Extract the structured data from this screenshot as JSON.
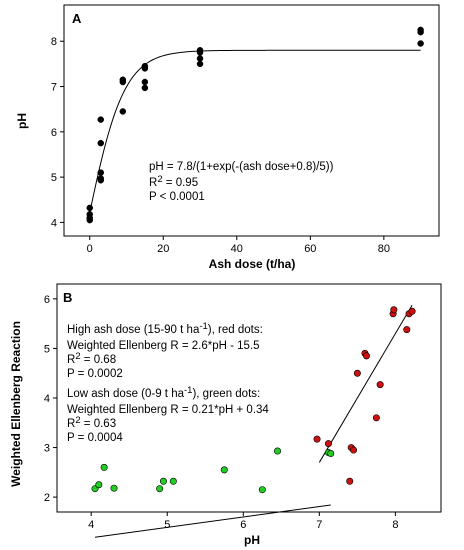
{
  "chart_data": [
    {
      "panel": "A",
      "type": "scatter",
      "xlabel": "Ash dose (t/ha)",
      "ylabel": "pH",
      "xlim": [
        -7,
        95
      ],
      "ylim": [
        3.7,
        8.8
      ],
      "xticks": [
        0,
        20,
        40,
        60,
        80
      ],
      "yticks": [
        4,
        5,
        6,
        7,
        8
      ],
      "series": [
        {
          "color": "#000000",
          "points": [
            [
              0,
              4.05
            ],
            [
              0,
              4.1
            ],
            [
              0,
              4.18
            ],
            [
              0,
              4.32
            ],
            [
              3,
              4.93
            ],
            [
              3,
              4.97
            ],
            [
              3,
              5.1
            ],
            [
              3,
              5.75
            ],
            [
              3,
              6.27
            ],
            [
              9,
              6.45
            ],
            [
              9,
              7.1
            ],
            [
              9,
              7.15
            ],
            [
              15,
              6.97
            ],
            [
              15,
              7.1
            ],
            [
              15,
              7.4
            ],
            [
              15,
              7.45
            ],
            [
              30,
              7.5
            ],
            [
              30,
              7.62
            ],
            [
              30,
              7.75
            ],
            [
              30,
              7.8
            ],
            [
              90,
              7.95
            ],
            [
              90,
              8.2
            ],
            [
              90,
              8.25
            ]
          ]
        }
      ],
      "fit": {
        "equation": "pH = 7.8/(1+exp(-(ash dose+0.8)/5))",
        "x_range": [
          0,
          90
        ]
      },
      "annotations": {
        "equation": "pH = 7.8/(1+exp(-(ash dose+0.8)/5))",
        "r2_prefix": "R",
        "r2_sup": "2",
        "r2_suffix": " = 0.95",
        "p": "P < 0.0001"
      }
    },
    {
      "panel": "B",
      "type": "scatter",
      "xlabel": "pH",
      "ylabel": "Weighted Ellenberg Reaction",
      "xlim": [
        3.55,
        8.6
      ],
      "ylim": [
        1.7,
        6.3
      ],
      "xticks": [
        4,
        5,
        6,
        7,
        8
      ],
      "yticks": [
        2,
        3,
        4,
        5,
        6
      ],
      "series": [
        {
          "color": "#22cc22",
          "points": [
            [
              4.05,
              2.17
            ],
            [
              4.1,
              2.25
            ],
            [
              4.17,
              2.6
            ],
            [
              4.3,
              2.18
            ],
            [
              4.9,
              2.17
            ],
            [
              4.95,
              2.32
            ],
            [
              5.08,
              2.32
            ],
            [
              5.75,
              2.55
            ],
            [
              6.25,
              2.15
            ],
            [
              6.45,
              2.93
            ],
            [
              7.12,
              2.9
            ],
            [
              7.15,
              2.88
            ]
          ]
        },
        {
          "color": "#cc1111",
          "points": [
            [
              6.97,
              3.17
            ],
            [
              7.12,
              3.08
            ],
            [
              7.4,
              2.32
            ],
            [
              7.42,
              3.0
            ],
            [
              7.45,
              2.95
            ],
            [
              7.5,
              4.5
            ],
            [
              7.6,
              4.9
            ],
            [
              7.62,
              4.85
            ],
            [
              7.75,
              3.6
            ],
            [
              7.8,
              4.27
            ],
            [
              7.97,
              5.7
            ],
            [
              7.98,
              5.78
            ],
            [
              8.15,
              5.38
            ],
            [
              8.18,
              5.7
            ],
            [
              8.22,
              5.75
            ]
          ]
        }
      ],
      "fits": [
        {
          "slope": 0.21,
          "intercept": 0.34,
          "x_range": [
            4.05,
            7.15
          ]
        },
        {
          "slope": 2.6,
          "intercept": -15.5,
          "x_range": [
            7.0,
            8.22
          ]
        }
      ],
      "annotations": {
        "high_line1_a": "High ash dose (15-90 t ha",
        "high_line1_sup": "-1",
        "high_line1_b": "), red dots:",
        "high_line2": "Weighted Ellenberg R = 2.6*pH - 15.5",
        "high_r2_prefix": "R",
        "high_r2_sup": "2",
        "high_r2_suffix": " = 0.68",
        "high_p": "P = 0.0002",
        "low_line1": "Low ash dose (0-9 t ha",
        "low_line1_sup": "-1",
        "low_line1_b": "), green dots:",
        "low_line2": "Weighted Ellenberg R = 0.21*pH + 0.34",
        "low_r2_prefix": "R",
        "low_r2_sup": "2",
        "low_r2_suffix": " = 0.63",
        "low_p": "P = 0.0004"
      }
    }
  ]
}
